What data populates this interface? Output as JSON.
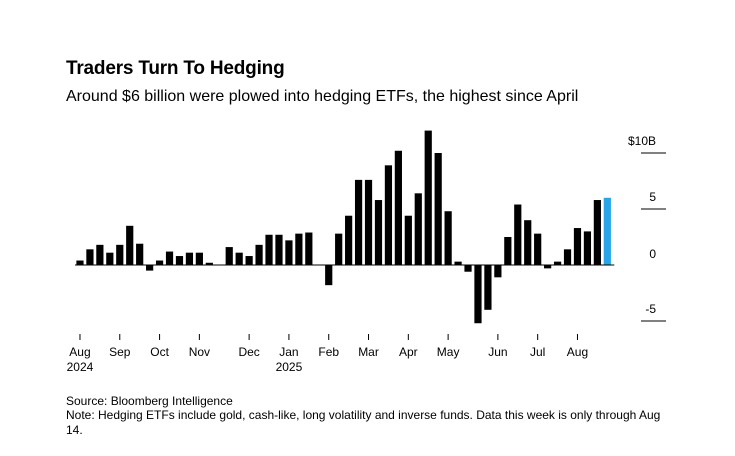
{
  "title": "Traders Turn To Hedging",
  "subtitle": "Around $6 billion were plowed into hedging ETFs, the highest since April",
  "source": "Source: Bloomberg Intelligence",
  "note": "Note: Hedging ETFs include gold, cash-like, long volatility and inverse funds. Data this week is only through Aug 14.",
  "chart_data": {
    "type": "bar",
    "unit": "$B",
    "ylim": [
      -5.5,
      12
    ],
    "ticks": [
      {
        "value": 10,
        "label": "$10B"
      },
      {
        "value": 5,
        "label": "5"
      },
      {
        "value": 0,
        "label": "0"
      },
      {
        "value": -5,
        "label": "-5"
      }
    ],
    "x_tick_labels": [
      {
        "week": 0.5,
        "label": "Aug",
        "year": "2024"
      },
      {
        "week": 4.5,
        "label": "Sep"
      },
      {
        "week": 8.5,
        "label": "Oct"
      },
      {
        "week": 12.5,
        "label": "Nov"
      },
      {
        "week": 17.5,
        "label": "Dec"
      },
      {
        "week": 21.5,
        "label": "Jan",
        "year": "2025"
      },
      {
        "week": 25.5,
        "label": "Feb"
      },
      {
        "week": 29.5,
        "label": "Mar"
      },
      {
        "week": 33.5,
        "label": "Apr"
      },
      {
        "week": 37.5,
        "label": "May"
      },
      {
        "week": 42.5,
        "label": "Jun"
      },
      {
        "week": 46.5,
        "label": "Jul"
      },
      {
        "week": 50.5,
        "label": "Aug"
      }
    ],
    "values": [
      0.4,
      1.4,
      1.8,
      1.1,
      1.8,
      3.5,
      1.9,
      -0.5,
      0.4,
      1.2,
      0.8,
      1.1,
      1.1,
      0.2,
      0,
      1.6,
      1.1,
      0.8,
      1.8,
      2.7,
      2.7,
      2.2,
      2.8,
      2.9,
      0,
      -1.8,
      2.8,
      4.4,
      7.6,
      7.6,
      5.8,
      8.9,
      10.2,
      4.4,
      6.4,
      12.0,
      10.0,
      4.8,
      0.3,
      -0.6,
      -5.2,
      -4.0,
      -1.1,
      2.5,
      5.4,
      4.0,
      2.8,
      -0.3,
      0.3,
      1.4,
      3.3,
      3.0,
      5.8,
      6.0
    ],
    "colors": {
      "bar": "#000000",
      "highlight": "#28a5e8",
      "axis": "#000000",
      "gridline": "#000000"
    }
  }
}
